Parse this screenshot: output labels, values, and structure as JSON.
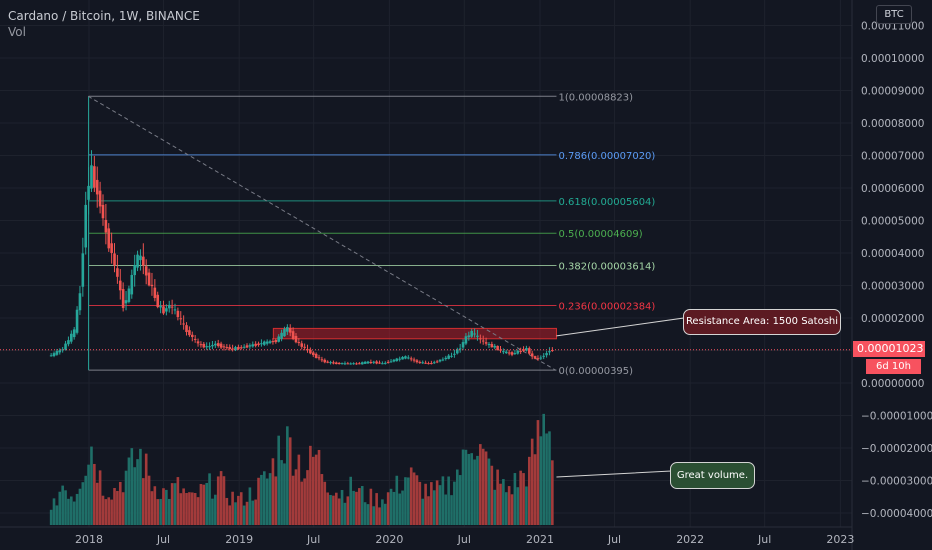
{
  "header": {
    "title": "Cardano / Bitcoin, 1W, BINANCE",
    "vol_label": "Vol"
  },
  "currency_badge": "BTC",
  "last_price_label": "0.00001023",
  "countdown_label": "6d 10h",
  "price_axis_ticks": [
    "0.00011000",
    "0.00010000",
    "0.00009000",
    "0.00008000",
    "0.00007000",
    "0.00006000",
    "0.00005000",
    "0.00004000",
    "0.00003000",
    "0.00002000",
    "0.00001000",
    "0.00000000",
    "−0.00001000",
    "−0.00002000",
    "−0.00003000",
    "−0.00004000"
  ],
  "time_axis_ticks": [
    "2018",
    "Jul",
    "2019",
    "Jul",
    "2020",
    "Jul",
    "2021",
    "Jul",
    "2022",
    "Jul",
    "2023"
  ],
  "fib_levels": [
    {
      "label": "1(0.00008823)",
      "level": 8.823e-05,
      "color": "#9598a1"
    },
    {
      "label": "0.786(0.00007020)",
      "level": 7.02e-05,
      "color": "#5b9cf6"
    },
    {
      "label": "0.618(0.00005604)",
      "level": 5.604e-05,
      "color": "#22ab94"
    },
    {
      "label": "0.5(0.00004609)",
      "level": 4.609e-05,
      "color": "#4caf50"
    },
    {
      "label": "0.382(0.00003614)",
      "level": 3.614e-05,
      "color": "#a5d6a7"
    },
    {
      "label": "0.236(0.00002384)",
      "level": 2.384e-05,
      "color": "#f23645"
    },
    {
      "label": "0(0.00000395)",
      "level": 3.95e-06,
      "color": "#9598a1"
    }
  ],
  "annotations": {
    "resistance": "Resistance Area: 1500 Satoshi",
    "volume": "Great volume."
  },
  "colors": {
    "up": "#26a69a",
    "down": "#ef5350",
    "vol_up": "#1f6f68",
    "vol_down": "#a33b3b",
    "background": "#131722"
  },
  "chart_data": {
    "type": "candlestick",
    "title": "Cardano / Bitcoin, 1W, BINANCE",
    "price_range": [
      -4.5e-05,
      0.000115
    ],
    "x_range": [
      "2017-09-20",
      "2023-03-15"
    ],
    "last_price": 1.023e-05,
    "resistance_zone": {
      "label": "Resistance Area: 1500 Satoshi",
      "from": "2019-03-25",
      "to": "2021-02-10",
      "low": 1.36e-05,
      "high": 1.68e-05
    },
    "trendline": {
      "from": {
        "date": "2017-12-30",
        "value": 8.823e-05
      },
      "to": {
        "date": "2021-02-08",
        "value": 3.95e-06
      }
    },
    "price_path": [
      [
        "2017-10-01",
        8.5e-06
      ],
      [
        "2017-10-29",
        1.05e-05
      ],
      [
        "2017-11-26",
        1.6e-05
      ],
      [
        "2017-12-10",
        2.8e-05
      ],
      [
        "2017-12-24",
        5.5e-05
      ],
      [
        "2018-01-04",
        6.6e-05
      ],
      [
        "2018-01-14",
        6.2e-05
      ],
      [
        "2018-01-28",
        5.5e-05
      ],
      [
        "2018-02-11",
        4.6e-05
      ],
      [
        "2018-02-25",
        4e-05
      ],
      [
        "2018-03-11",
        3.2e-05
      ],
      [
        "2018-03-25",
        2.4e-05
      ],
      [
        "2018-04-08",
        2.8e-05
      ],
      [
        "2018-04-22",
        3.7e-05
      ],
      [
        "2018-05-06",
        3.9e-05
      ],
      [
        "2018-05-20",
        3.3e-05
      ],
      [
        "2018-06-03",
        2.9e-05
      ],
      [
        "2018-06-17",
        2.4e-05
      ],
      [
        "2018-07-01",
        2.2e-05
      ],
      [
        "2018-07-15",
        2.4e-05
      ],
      [
        "2018-07-29",
        2.2e-05
      ],
      [
        "2018-08-12",
        1.9e-05
      ],
      [
        "2018-08-26",
        1.6e-05
      ],
      [
        "2018-09-09",
        1.4e-05
      ],
      [
        "2018-09-23",
        1.2e-05
      ],
      [
        "2018-10-14",
        1.1e-05
      ],
      [
        "2018-11-04",
        1.2e-05
      ],
      [
        "2018-11-25",
        1.1e-05
      ],
      [
        "2018-12-16",
        1.05e-05
      ],
      [
        "2019-01-06",
        1.1e-05
      ],
      [
        "2019-01-27",
        1.15e-05
      ],
      [
        "2019-02-17",
        1.2e-05
      ],
      [
        "2019-03-10",
        1.25e-05
      ],
      [
        "2019-03-31",
        1.3e-05
      ],
      [
        "2019-04-14",
        1.5e-05
      ],
      [
        "2019-04-28",
        1.7e-05
      ],
      [
        "2019-05-12",
        1.4e-05
      ],
      [
        "2019-05-26",
        1.2e-05
      ],
      [
        "2019-06-16",
        1e-05
      ],
      [
        "2019-07-07",
        8e-06
      ],
      [
        "2019-07-28",
        6.5e-06
      ],
      [
        "2019-08-25",
        6e-06
      ],
      [
        "2019-09-22",
        6e-06
      ],
      [
        "2019-10-20",
        6e-06
      ],
      [
        "2019-11-17",
        6.5e-06
      ],
      [
        "2019-12-15",
        6e-06
      ],
      [
        "2020-01-12",
        7e-06
      ],
      [
        "2020-02-09",
        8e-06
      ],
      [
        "2020-03-08",
        6.5e-06
      ],
      [
        "2020-04-05",
        6e-06
      ],
      [
        "2020-05-03",
        7e-06
      ],
      [
        "2020-05-31",
        8.5e-06
      ],
      [
        "2020-06-21",
        1.1e-05
      ],
      [
        "2020-07-05",
        1.4e-05
      ],
      [
        "2020-07-19",
        1.55e-05
      ],
      [
        "2020-08-02",
        1.4e-05
      ],
      [
        "2020-08-23",
        1.2e-05
      ],
      [
        "2020-09-13",
        1.1e-05
      ],
      [
        "2020-10-04",
        9.5e-06
      ],
      [
        "2020-10-25",
        9e-06
      ],
      [
        "2020-11-15",
        1e-05
      ],
      [
        "2020-11-29",
        1.05e-05
      ],
      [
        "2020-12-13",
        8e-06
      ],
      [
        "2020-12-27",
        7.5e-06
      ],
      [
        "2021-01-10",
        8.5e-06
      ],
      [
        "2021-01-24",
        1e-05
      ],
      [
        "2021-02-01",
        1.02e-05
      ]
    ],
    "volume": {
      "max": 3.52e-05,
      "bars": [
        [
          "2017-10-01",
          4e-06
        ],
        [
          "2017-10-29",
          1.3e-05
        ],
        [
          "2017-11-26",
          9e-06
        ],
        [
          "2017-12-17",
          1.8e-05
        ],
        [
          "2018-01-07",
          2.5e-05
        ],
        [
          "2018-02-04",
          1.2e-05
        ],
        [
          "2018-03-04",
          1.1e-05
        ],
        [
          "2018-04-01",
          1.6e-05
        ],
        [
          "2018-05-06",
          2.2e-05
        ],
        [
          "2018-06-03",
          1.3e-05
        ],
        [
          "2018-07-08",
          1e-05
        ],
        [
          "2018-08-05",
          1.2e-05
        ],
        [
          "2018-09-09",
          8e-06
        ],
        [
          "2018-10-07",
          1.1e-05
        ],
        [
          "2018-11-11",
          1.4e-05
        ],
        [
          "2018-12-09",
          9e-06
        ],
        [
          "2019-01-06",
          8e-06
        ],
        [
          "2019-02-10",
          1.1e-05
        ],
        [
          "2019-03-17",
          1.6e-05
        ],
        [
          "2019-04-14",
          2.7e-05
        ],
        [
          "2019-05-12",
          2.4e-05
        ],
        [
          "2019-06-09",
          1.7e-05
        ],
        [
          "2019-07-07",
          2.2e-05
        ],
        [
          "2019-08-04",
          1.4e-05
        ],
        [
          "2019-09-01",
          1e-05
        ],
        [
          "2019-10-06",
          1.2e-05
        ],
        [
          "2019-11-03",
          9e-06
        ],
        [
          "2019-12-08",
          8e-06
        ],
        [
          "2020-01-12",
          1.1e-05
        ],
        [
          "2020-02-16",
          1.6e-05
        ],
        [
          "2020-03-15",
          1.2e-05
        ],
        [
          "2020-04-19",
          1e-05
        ],
        [
          "2020-05-24",
          1.3e-05
        ],
        [
          "2020-06-28",
          1.9e-05
        ],
        [
          "2020-07-19",
          3e-05
        ],
        [
          "2020-08-16",
          2.1e-05
        ],
        [
          "2020-09-13",
          1.5e-05
        ],
        [
          "2020-10-11",
          1.1e-05
        ],
        [
          "2020-11-08",
          1.4e-05
        ],
        [
          "2020-12-06",
          1.8e-05
        ],
        [
          "2020-12-27",
          2.7e-05
        ],
        [
          "2021-01-17",
          3.5e-05
        ],
        [
          "2021-02-01",
          2.6e-05
        ]
      ]
    }
  }
}
